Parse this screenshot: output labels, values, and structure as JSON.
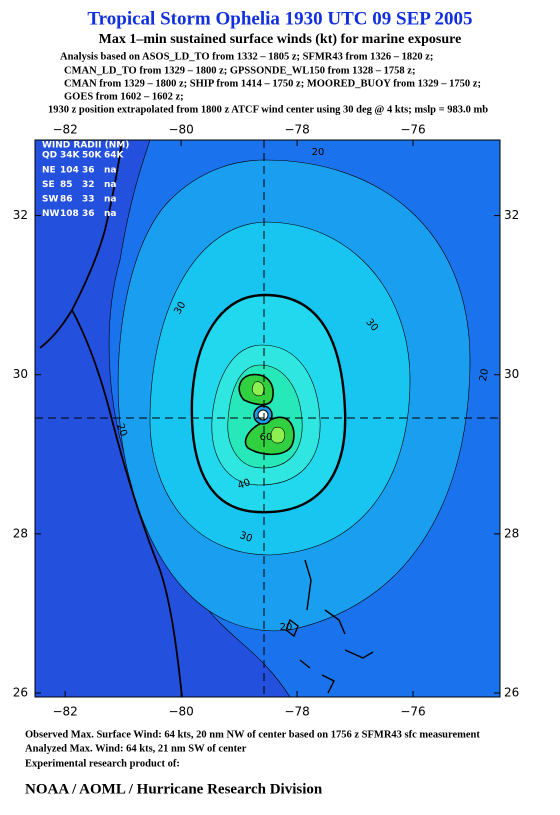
{
  "header": {
    "title": "Tropical Storm Ophelia 1930 UTC 09 SEP 2005",
    "subtitle": "Max 1–min sustained surface winds (kt) for marine exposure",
    "analysis_lines": [
      "Analysis based on  ASOS_LD_TO from 1332 – 1805 z;  SFMR43 from 1326 – 1820 z;",
      "CMAN_LD_TO from 1329 – 1800 z;  GPSSONDE_WL150 from 1328 – 1758 z;",
      "CMAN from 1329 – 1800 z;  SHIP from 1414 – 1750 z;  MOORED_BUOY from 1329 – 1750 z;",
      "GOES from 1602 – 1602 z;"
    ],
    "position_note": "1930 z position extrapolated from 1800 z ATCF wind center using 30 deg @ 4 kts; mslp = 983.0 mb"
  },
  "map": {
    "xlim": [
      -82.52,
      -74.5
    ],
    "ylim": [
      25.95,
      32.95
    ],
    "xticks": [
      {
        "value": -82,
        "label": "−82"
      },
      {
        "value": -80,
        "label": "−80"
      },
      {
        "value": -78,
        "label": "−78"
      },
      {
        "value": -76,
        "label": "−76"
      }
    ],
    "yticks": [
      26,
      28,
      30,
      32
    ],
    "contour_labels": [
      "20",
      "30",
      "30",
      "20",
      "20",
      "60",
      "40",
      "30",
      "20"
    ],
    "wind_radii": {
      "title": "WIND RADII (NM)",
      "header": [
        "QD",
        "34K",
        "50K",
        "64K"
      ],
      "rows": [
        [
          "NE",
          "104",
          "36",
          "na"
        ],
        [
          "SE",
          "85",
          "32",
          "na"
        ],
        [
          "SW",
          "86",
          "33",
          "na"
        ],
        [
          "NW",
          "108",
          "36",
          "na"
        ]
      ]
    }
  },
  "footer": {
    "lines": [
      "Observed Max. Surface Wind: 64 kts, 20 nm NW of center based on 1756 z SFMR43 sfc measurement",
      "Analyzed Max. Wind: 64 kts, 21 nm SW of center",
      "Experimental research product of:"
    ],
    "credit": "NOAA / AOML / Hurricane Research Division"
  }
}
